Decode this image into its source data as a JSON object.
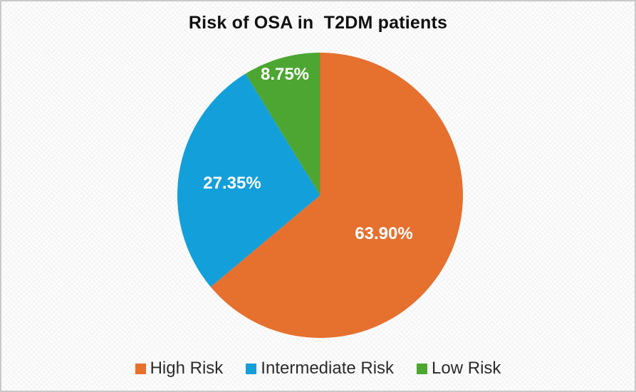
{
  "chart_data": {
    "type": "pie",
    "title": "Risk of OSA in  T2DM patients",
    "slices": [
      {
        "label": "High Risk",
        "value": 63.9,
        "display": "63.90%",
        "color": "#E6702E"
      },
      {
        "label": "Intermediate Risk",
        "value": 27.35,
        "display": "27.35%",
        "color": "#139FDA"
      },
      {
        "label": "Low Risk",
        "value": 8.75,
        "display": "8.75%",
        "color": "#4CA631"
      }
    ],
    "start_angle_deg": 0,
    "direction": "clockwise",
    "legend_position": "bottom",
    "data_label_color": "#FFFFFF",
    "title_color": "#111111",
    "legend_text_color": "#2B2B2B",
    "background_color": "#FDFDFD",
    "border_color": "#C9C9C9"
  }
}
